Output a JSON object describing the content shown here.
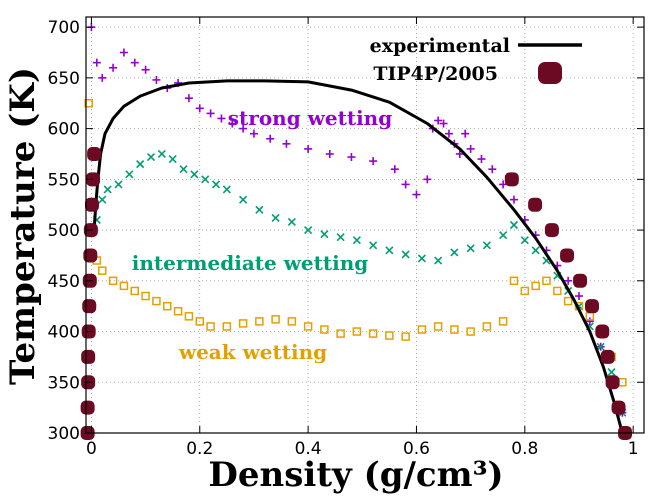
{
  "chart_data": {
    "type": "scatter",
    "title": "",
    "xlabel": "Density (g/cm³)",
    "ylabel": "Temperature (K)",
    "xlim": [
      -0.01,
      1.02
    ],
    "ylim": [
      300,
      710
    ],
    "xticks": [
      0,
      0.2,
      0.4,
      0.6,
      0.8,
      1
    ],
    "xtick_labels": [
      "0",
      "0.2",
      "0.4",
      "0.6",
      "0.8",
      "1"
    ],
    "yticks": [
      300,
      350,
      400,
      450,
      500,
      550,
      600,
      650,
      700
    ],
    "ytick_labels": [
      "300",
      "350",
      "400",
      "450",
      "500",
      "550",
      "600",
      "650",
      "700"
    ],
    "grid": "dotted",
    "legend": {
      "position": "top-right",
      "entries": [
        {
          "label": "experimental",
          "marker": "line",
          "color": "#000000"
        },
        {
          "label": "TIP4P/2005",
          "marker": "rounded-square",
          "color": "#6b0a22"
        }
      ]
    },
    "annotations": [
      {
        "text": "strong wetting",
        "color": "#9400d3"
      },
      {
        "text": "intermediate wetting",
        "color": "#009e73"
      },
      {
        "text": "weak wetting",
        "color": "#e69f00"
      }
    ],
    "series": [
      {
        "name": "experimental",
        "style": "line",
        "color": "#000000",
        "x": [
          0.005,
          0.008,
          0.012,
          0.017,
          0.025,
          0.04,
          0.06,
          0.09,
          0.13,
          0.18,
          0.25,
          0.32,
          0.4,
          0.48,
          0.55,
          0.62,
          0.68,
          0.73,
          0.78,
          0.82,
          0.86,
          0.89,
          0.92,
          0.945,
          0.965,
          0.98
        ],
        "y": [
          500,
          525,
          550,
          575,
          595,
          610,
          622,
          632,
          640,
          645,
          647,
          647,
          646,
          638,
          626,
          605,
          580,
          552,
          520,
          492,
          460,
          432,
          400,
          365,
          330,
          300
        ]
      },
      {
        "name": "TIP4P/2005",
        "style": "marker",
        "color": "#6b0a22",
        "x": [
          -0.007,
          -0.007,
          -0.006,
          -0.006,
          -0.005,
          -0.004,
          -0.003,
          -0.002,
          -0.001,
          0.001,
          0.003,
          0.005,
          0.985,
          0.973,
          0.962,
          0.953,
          0.943,
          0.924,
          0.902,
          0.878,
          0.85,
          0.819,
          0.776
        ],
        "y": [
          300,
          325,
          350,
          375,
          400,
          425,
          450,
          475,
          500,
          525,
          550,
          575,
          300,
          325,
          350,
          375,
          400,
          425,
          450,
          475,
          500,
          525,
          550
        ]
      },
      {
        "name": "strong wetting",
        "style": "plus",
        "color": "#9400d3",
        "x": [
          0.0,
          0.01,
          0.02,
          0.04,
          0.06,
          0.08,
          0.1,
          0.12,
          0.14,
          0.16,
          0.18,
          0.2,
          0.22,
          0.24,
          0.26,
          0.28,
          0.3,
          0.33,
          0.36,
          0.4,
          0.44,
          0.48,
          0.52,
          0.56,
          0.58,
          0.6,
          0.62,
          0.63,
          0.64,
          0.65,
          0.66,
          0.67,
          0.68,
          0.69,
          0.7,
          0.72,
          0.74,
          0.76,
          0.78,
          0.8,
          0.82,
          0.84,
          0.86,
          0.88,
          0.9,
          0.92,
          0.94,
          0.96,
          0.98
        ],
        "y": [
          700,
          665,
          650,
          660,
          675,
          665,
          658,
          648,
          640,
          645,
          630,
          620,
          615,
          610,
          605,
          600,
          595,
          590,
          585,
          580,
          575,
          572,
          568,
          560,
          545,
          535,
          550,
          600,
          608,
          605,
          595,
          585,
          575,
          595,
          580,
          570,
          560,
          545,
          530,
          510,
          495,
          480,
          465,
          450,
          435,
          410,
          385,
          350,
          320
        ]
      },
      {
        "name": "intermediate wetting",
        "style": "cross",
        "color": "#009e73",
        "x": [
          0.01,
          0.02,
          0.03,
          0.05,
          0.07,
          0.09,
          0.11,
          0.13,
          0.15,
          0.17,
          0.19,
          0.21,
          0.23,
          0.25,
          0.28,
          0.31,
          0.34,
          0.37,
          0.4,
          0.43,
          0.46,
          0.49,
          0.52,
          0.55,
          0.58,
          0.61,
          0.64,
          0.67,
          0.7,
          0.73,
          0.76,
          0.78,
          0.8,
          0.82,
          0.84,
          0.86,
          0.88,
          0.9,
          0.92,
          0.94,
          0.96,
          0.98
        ],
        "y": [
          510,
          530,
          540,
          545,
          555,
          565,
          572,
          575,
          570,
          560,
          555,
          550,
          545,
          540,
          530,
          520,
          512,
          508,
          500,
          496,
          493,
          490,
          485,
          480,
          476,
          472,
          470,
          478,
          482,
          485,
          495,
          505,
          490,
          480,
          470,
          455,
          440,
          425,
          405,
          385,
          360,
          320
        ]
      },
      {
        "name": "weak wetting",
        "style": "square",
        "color": "#e69f00",
        "x": [
          -0.005,
          0.0,
          0.01,
          0.02,
          0.04,
          0.06,
          0.08,
          0.1,
          0.12,
          0.14,
          0.16,
          0.18,
          0.2,
          0.22,
          0.25,
          0.28,
          0.31,
          0.34,
          0.37,
          0.4,
          0.43,
          0.46,
          0.49,
          0.52,
          0.55,
          0.58,
          0.61,
          0.64,
          0.67,
          0.7,
          0.73,
          0.76,
          0.78,
          0.8,
          0.82,
          0.84,
          0.86,
          0.88,
          0.9,
          0.92,
          0.94,
          0.96,
          0.98
        ],
        "y": [
          625,
          500,
          470,
          460,
          450,
          445,
          440,
          435,
          430,
          425,
          420,
          415,
          410,
          405,
          405,
          408,
          410,
          412,
          410,
          405,
          402,
          398,
          400,
          398,
          396,
          395,
          402,
          405,
          402,
          400,
          405,
          410,
          450,
          440,
          445,
          450,
          440,
          430,
          425,
          415,
          400,
          375,
          350
        ]
      }
    ]
  }
}
